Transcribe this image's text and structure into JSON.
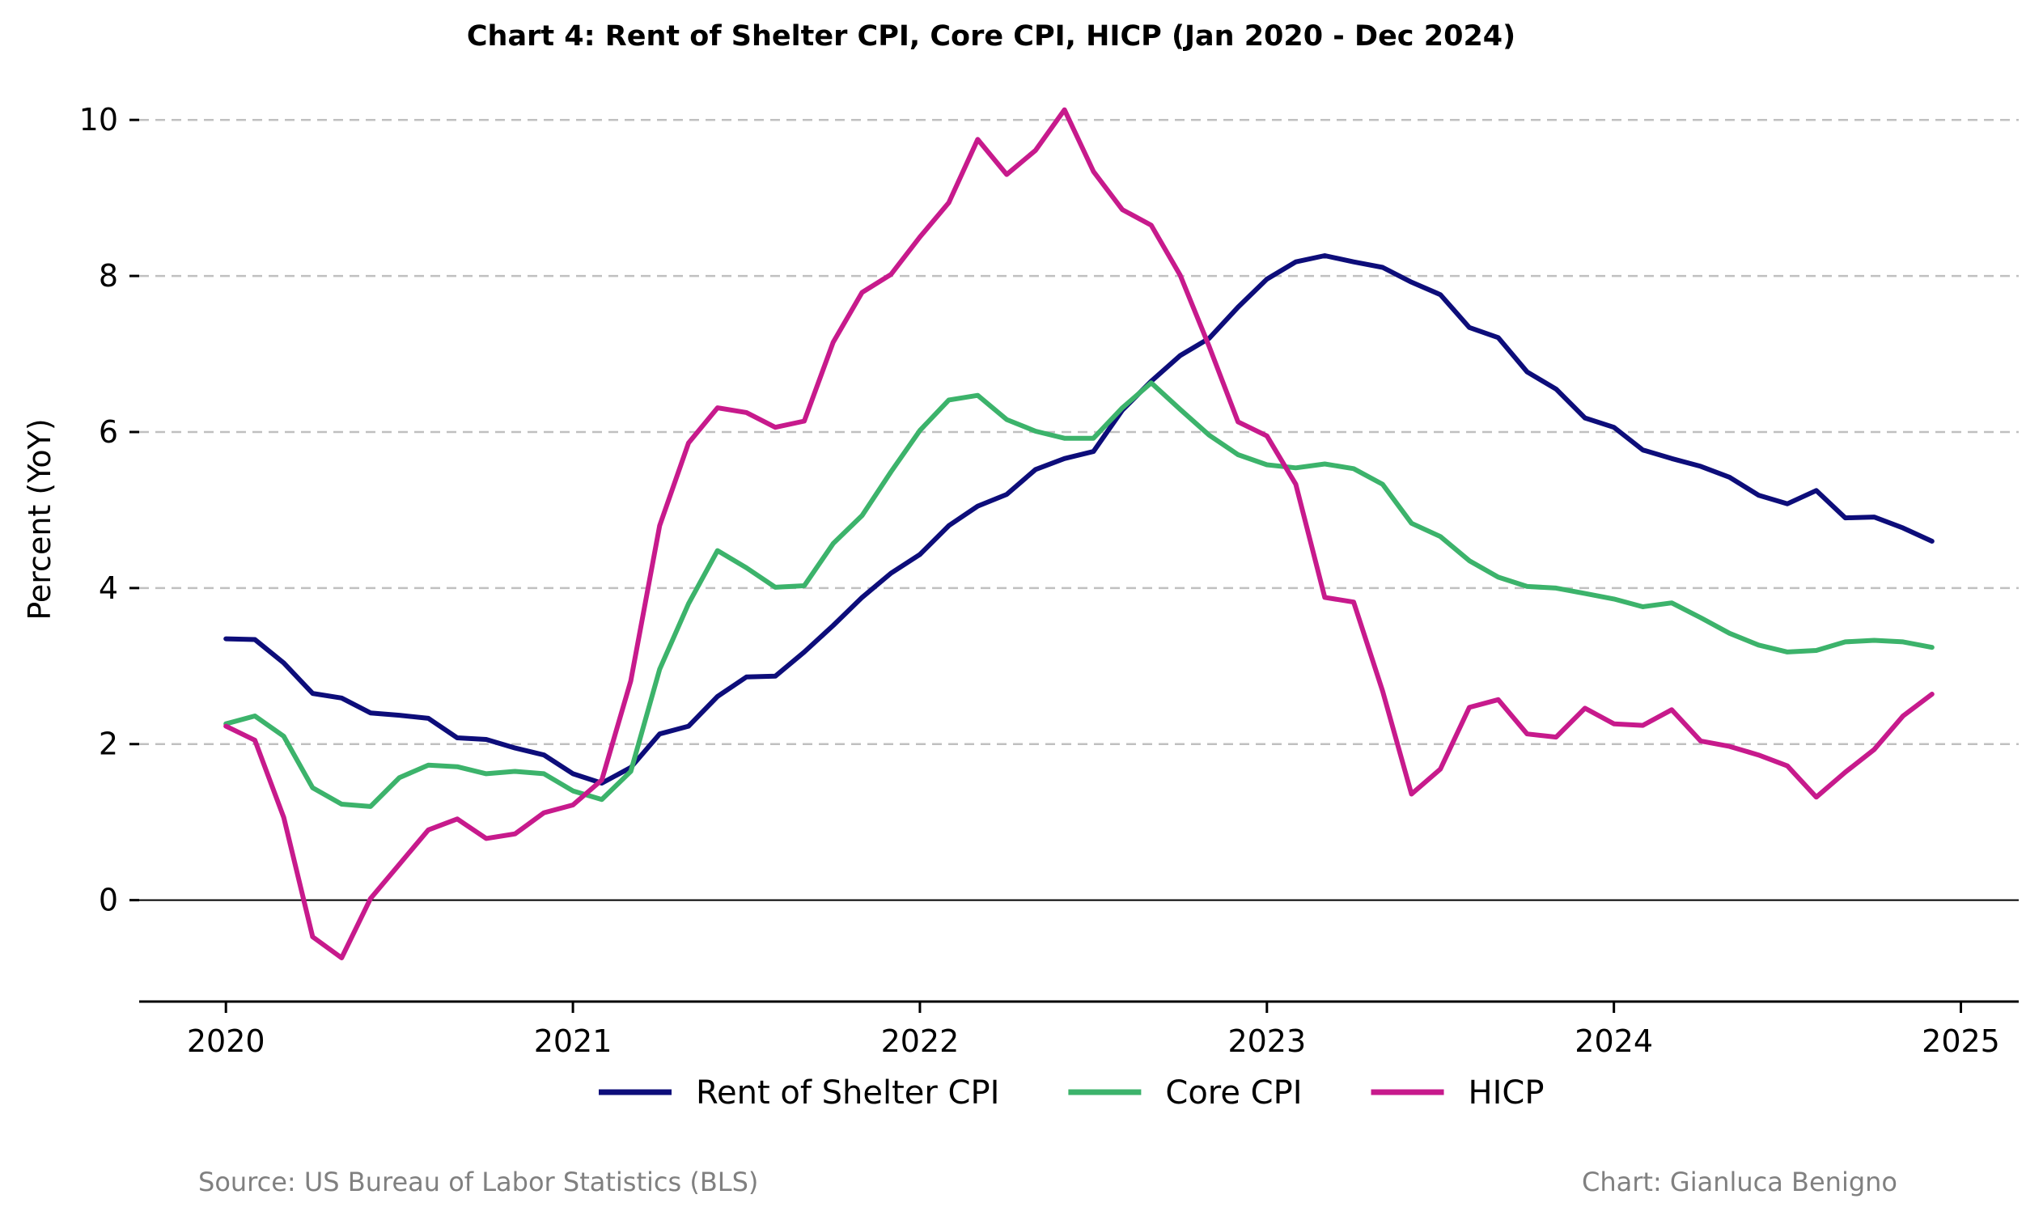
{
  "chart_data": {
    "type": "line",
    "title": "Chart 4: Rent of Shelter CPI, Core CPI, HICP (Jan 2020 - Dec 2024)",
    "xlabel": "",
    "ylabel": "Percent (YoY)",
    "x_start": "2020-01",
    "x_frequency": "monthly",
    "xlim": [
      "2019-10",
      "2025-03"
    ],
    "ylim": [
      -1.3,
      10.5
    ],
    "x_ticks": [
      "2020",
      "2021",
      "2022",
      "2023",
      "2024",
      "2025"
    ],
    "y_ticks": [
      0,
      2,
      4,
      6,
      8,
      10
    ],
    "grid": "horizontal dashed",
    "zero_line": true,
    "legend_position": "bottom-center",
    "series": [
      {
        "name": "Rent of Shelter CPI",
        "color": "#0d0d7a",
        "values": [
          3.35,
          3.34,
          3.04,
          2.65,
          2.59,
          2.4,
          2.37,
          2.33,
          2.08,
          2.06,
          1.95,
          1.86,
          1.62,
          1.5,
          1.7,
          2.13,
          2.23,
          2.61,
          2.86,
          2.87,
          3.18,
          3.52,
          3.88,
          4.19,
          4.43,
          4.8,
          5.05,
          5.2,
          5.52,
          5.66,
          5.75,
          6.28,
          6.65,
          6.98,
          7.2,
          7.6,
          7.96,
          8.18,
          8.26,
          8.18,
          8.11,
          7.92,
          7.76,
          7.34,
          7.21,
          6.77,
          6.55,
          6.18,
          6.06,
          5.77,
          5.66,
          5.56,
          5.42,
          5.19,
          5.08,
          5.25,
          4.9,
          4.91,
          4.77,
          4.6
        ]
      },
      {
        "name": "Core CPI",
        "color": "#3cb36b",
        "values": [
          2.26,
          2.36,
          2.1,
          1.44,
          1.23,
          1.2,
          1.57,
          1.73,
          1.71,
          1.62,
          1.65,
          1.62,
          1.4,
          1.29,
          1.65,
          2.96,
          3.8,
          4.48,
          4.26,
          4.01,
          4.03,
          4.57,
          4.93,
          5.49,
          6.02,
          6.41,
          6.47,
          6.16,
          6.01,
          5.92,
          5.92,
          6.31,
          6.63,
          6.29,
          5.96,
          5.71,
          5.58,
          5.54,
          5.59,
          5.53,
          5.33,
          4.83,
          4.66,
          4.35,
          4.14,
          4.02,
          4.0,
          3.93,
          3.86,
          3.76,
          3.81,
          3.62,
          3.42,
          3.27,
          3.18,
          3.2,
          3.31,
          3.33,
          3.31,
          3.24
        ]
      },
      {
        "name": "HICP",
        "color": "#c71a8c",
        "values": [
          2.23,
          2.05,
          1.06,
          -0.47,
          -0.74,
          0.02,
          0.46,
          0.9,
          1.04,
          0.79,
          0.85,
          1.12,
          1.22,
          1.54,
          2.81,
          4.8,
          5.86,
          6.31,
          6.25,
          6.06,
          6.14,
          7.15,
          7.79,
          8.02,
          8.5,
          8.94,
          9.75,
          9.3,
          9.61,
          10.13,
          9.34,
          8.85,
          8.65,
          8.01,
          7.1,
          6.13,
          5.95,
          5.33,
          3.88,
          3.82,
          2.68,
          1.36,
          1.68,
          2.47,
          2.57,
          2.13,
          2.09,
          2.46,
          2.26,
          2.24,
          2.44,
          2.04,
          1.97,
          1.86,
          1.72,
          1.32,
          1.64,
          1.93,
          2.36,
          2.64
        ]
      }
    ]
  },
  "footer": {
    "source": "Source: US Bureau of Labor Statistics (BLS)",
    "credit": "Chart: Gianluca Benigno"
  }
}
